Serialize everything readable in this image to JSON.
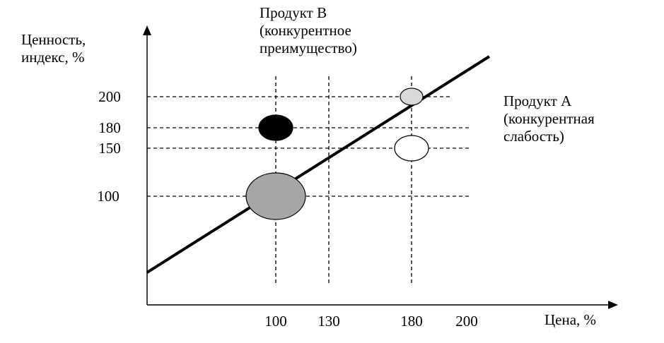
{
  "chart_data": {
    "type": "scatter",
    "title": "",
    "xlabel": "Цена, %",
    "ylabel": [
      "Ценность,",
      "индекс, %"
    ],
    "x_ticks": [
      100,
      130,
      180,
      200
    ],
    "y_ticks": [
      100,
      150,
      180,
      200
    ],
    "grid": "dashed",
    "points": [
      {
        "x": 100,
        "y": 100,
        "fill": "#a6a6a6",
        "size": "large"
      },
      {
        "x": 100,
        "y": 180,
        "fill": "#000000",
        "size": "small"
      },
      {
        "x": 180,
        "y": 200,
        "fill": "#d9d9d9",
        "size": "smallest"
      },
      {
        "x": 180,
        "y": 150,
        "fill": "#ffffff",
        "size": "small"
      }
    ],
    "trend_line": {
      "from": {
        "x": 20,
        "y": -50
      },
      "to": {
        "x": 210,
        "y": 240
      }
    },
    "annotations": [
      {
        "target": "top",
        "lines": [
          "Продукт В",
          "(конкурентное",
          "преимущество)"
        ]
      },
      {
        "target": "right",
        "lines": [
          "Продукт А",
          "(конкурентная",
          "слабость)"
        ]
      }
    ]
  }
}
